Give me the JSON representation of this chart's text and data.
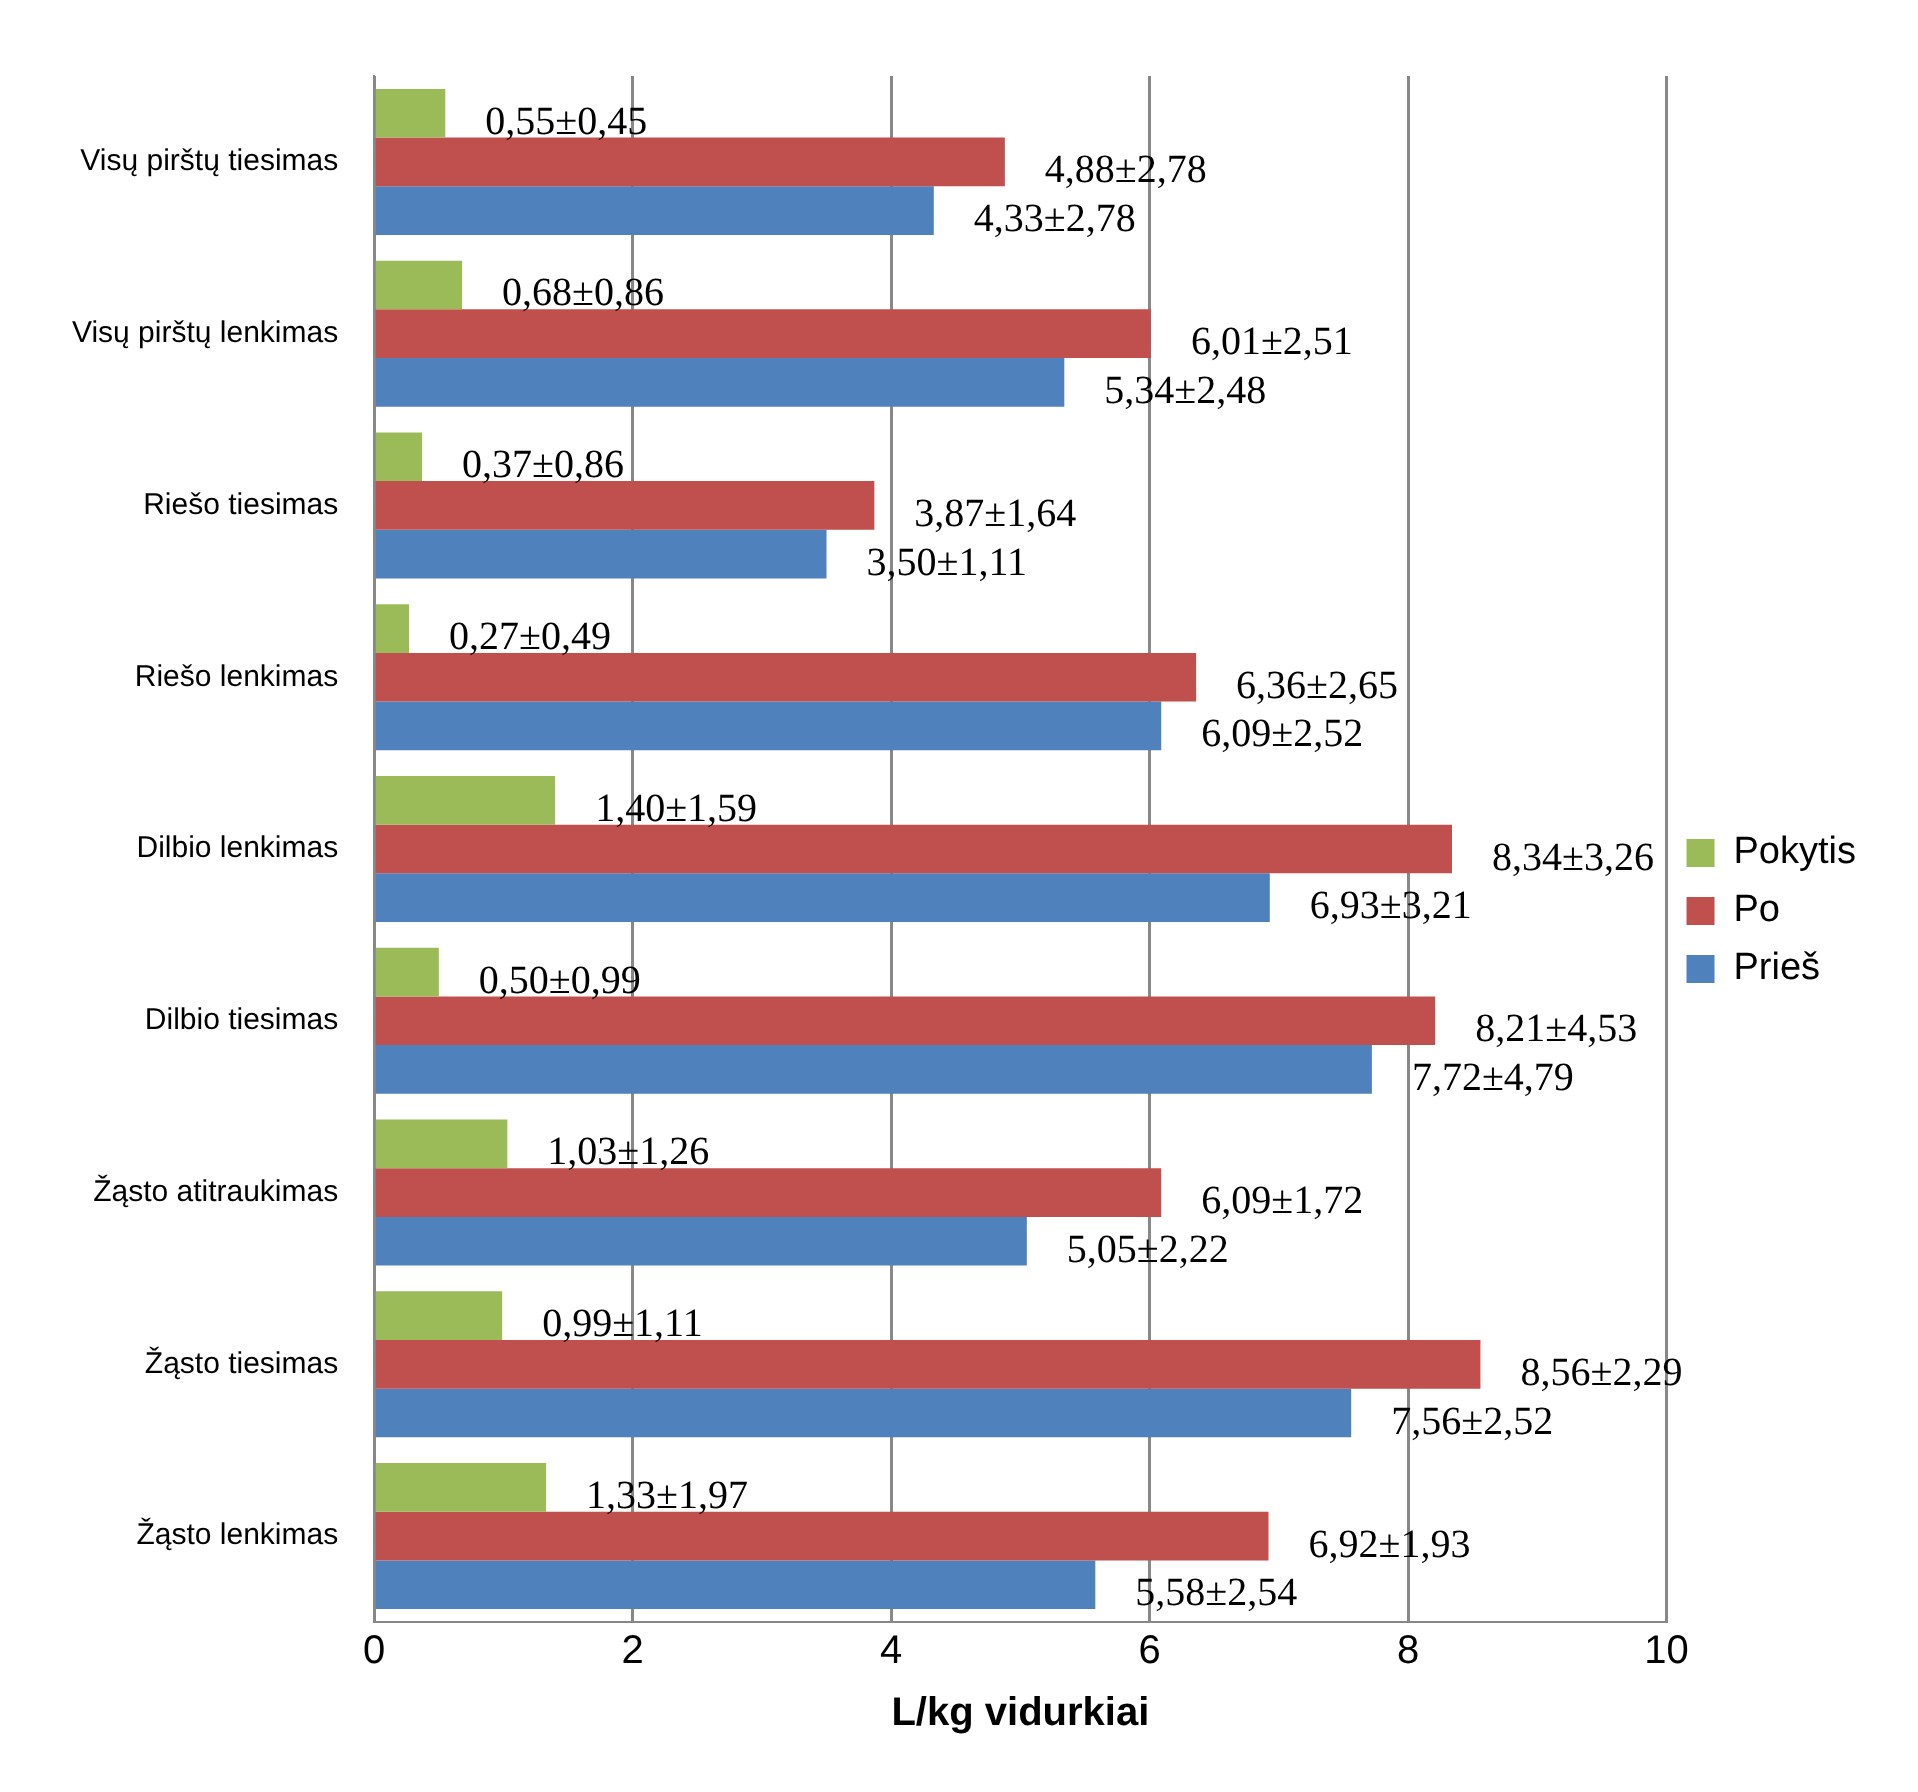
{
  "chart_data": {
    "type": "bar",
    "orientation": "horizontal",
    "xlabel": "L/kg vidurkiai",
    "categories": [
      "Visų pirštų tiesimas",
      "Visų pirštų lenkimas",
      "Riešo tiesimas",
      "Riešo lenkimas",
      "Dilbio lenkimas",
      "Dilbio tiesimas",
      "Žąsto atitraukimas",
      "Žąsto tiesimas",
      "Žąsto lenkimas"
    ],
    "series": [
      {
        "name": "Pokytis",
        "color": "#9bbb59",
        "values": [
          0.55,
          0.68,
          0.37,
          0.27,
          1.4,
          0.5,
          1.03,
          0.99,
          1.33
        ],
        "value_labels": [
          "0,55±0,45",
          "0,68±0,86",
          "0,37±0,86",
          "0,27±0,49",
          "1,40±1,59",
          "0,50±0,99",
          "1,03±1,26",
          "0,99±1,11",
          "1,33±1,97"
        ]
      },
      {
        "name": "Po",
        "color": "#c0504d",
        "values": [
          4.88,
          6.01,
          3.87,
          6.36,
          8.34,
          8.21,
          6.09,
          8.56,
          6.92
        ],
        "value_labels": [
          "4,88±2,78",
          "6,01±2,51",
          "3,87±1,64",
          "6,36±2,65",
          "8,34±3,26",
          "8,21±4,53",
          "6,09±1,72",
          "8,56±2,29",
          "6,92±1,93"
        ]
      },
      {
        "name": "Prieš",
        "color": "#4f81bd",
        "values": [
          4.33,
          5.34,
          3.5,
          6.09,
          6.93,
          7.72,
          5.05,
          7.56,
          5.58
        ],
        "value_labels": [
          "4,33±2,78",
          "5,34±2,48",
          "3,50±1,11",
          "6,09±2,52",
          "6,93±3,21",
          "7,72±4,79",
          "5,05±2,22",
          "7,56±2,52",
          "5,58±2,54"
        ]
      }
    ],
    "xlim": [
      0,
      10
    ],
    "xticks": [
      0,
      2,
      4,
      6,
      8,
      10
    ],
    "grid": "x",
    "legend": "right"
  }
}
